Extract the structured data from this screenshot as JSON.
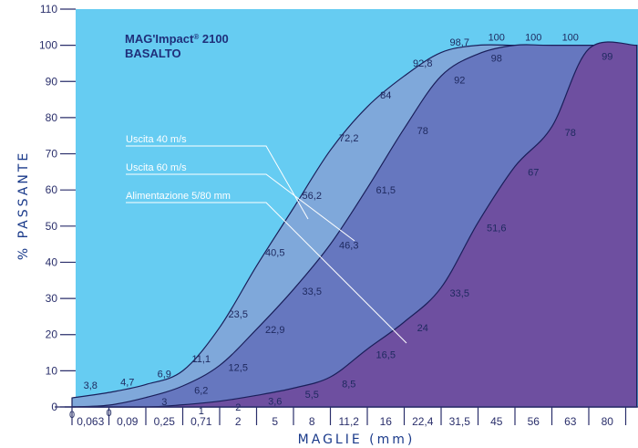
{
  "chart_data": {
    "type": "area",
    "title": "MAG'Impact",
    "title_sup": "®",
    "title_model": "2100",
    "subtitle": "BASALTO",
    "xlabel": "MAGLIE (mm)",
    "ylabel": "% PASSANTE",
    "ylim": [
      0,
      110
    ],
    "y_ticks": [
      0,
      10,
      20,
      30,
      40,
      50,
      60,
      70,
      80,
      90,
      100,
      110
    ],
    "x_categories": [
      "0,063",
      "0,09",
      "0,25",
      "0,71",
      "2",
      "5",
      "8",
      "11,2",
      "16",
      "22,4",
      "31,5",
      "45",
      "56",
      "63",
      "80"
    ],
    "series": [
      {
        "name": "Uscita 40 m/s",
        "color": "#7fa8da",
        "labels": [
          {
            "x": 0.5,
            "y": 3.8,
            "text": "3,8"
          },
          {
            "x": 1.5,
            "y": 4.7,
            "text": "4,7"
          },
          {
            "x": 2.5,
            "y": 6.9,
            "text": "6,9"
          },
          {
            "x": 3.5,
            "y": 11.1,
            "text": "11,1"
          },
          {
            "x": 4.5,
            "y": 23.5,
            "text": "23,5"
          },
          {
            "x": 5.5,
            "y": 40.5,
            "text": "40,5"
          },
          {
            "x": 6.5,
            "y": 56.2,
            "text": "56,2"
          },
          {
            "x": 7.5,
            "y": 72.2,
            "text": "72,2"
          },
          {
            "x": 8.5,
            "y": 84,
            "text": "84"
          },
          {
            "x": 9.5,
            "y": 92.8,
            "text": "92,8"
          },
          {
            "x": 10.5,
            "y": 98.7,
            "text": "98,7"
          },
          {
            "x": 11.5,
            "y": 100,
            "text": "100"
          },
          {
            "x": 12.5,
            "y": 100,
            "text": "100"
          },
          {
            "x": 13.5,
            "y": 100,
            "text": "100"
          }
        ]
      },
      {
        "name": "Uscita 60 m/s",
        "color": "#6677bf",
        "labels": [
          {
            "x": 1.0,
            "y": 0,
            "text": "0"
          },
          {
            "x": 2.5,
            "y": 3,
            "text": "3"
          },
          {
            "x": 3.5,
            "y": 6.2,
            "text": "6,2"
          },
          {
            "x": 4.5,
            "y": 12.5,
            "text": "12,5"
          },
          {
            "x": 5.5,
            "y": 22.9,
            "text": "22,9"
          },
          {
            "x": 6.5,
            "y": 33.5,
            "text": "33,5"
          },
          {
            "x": 7.5,
            "y": 46.3,
            "text": "46,3"
          },
          {
            "x": 8.5,
            "y": 61.5,
            "text": "61,5"
          },
          {
            "x": 9.5,
            "y": 78,
            "text": "78"
          },
          {
            "x": 10.5,
            "y": 92,
            "text": "92"
          },
          {
            "x": 11.5,
            "y": 98,
            "text": "98"
          }
        ]
      },
      {
        "name": "Alimentazione 5/80 mm",
        "color": "#6e4fa0",
        "labels": [
          {
            "x": 0,
            "y": 0,
            "text": "0"
          },
          {
            "x": 3.5,
            "y": 1,
            "text": "1"
          },
          {
            "x": 4.5,
            "y": 2,
            "text": "2"
          },
          {
            "x": 5.5,
            "y": 3.6,
            "text": "3,6"
          },
          {
            "x": 6.5,
            "y": 5.5,
            "text": "5,5"
          },
          {
            "x": 7.5,
            "y": 8.5,
            "text": "8,5"
          },
          {
            "x": 8.5,
            "y": 16.5,
            "text": "16,5"
          },
          {
            "x": 9.5,
            "y": 24,
            "text": "24"
          },
          {
            "x": 10.5,
            "y": 33.5,
            "text": "33,5"
          },
          {
            "x": 11.5,
            "y": 51.6,
            "text": "51,6"
          },
          {
            "x": 12.5,
            "y": 67,
            "text": "67"
          },
          {
            "x": 13.5,
            "y": 78,
            "text": "78"
          },
          {
            "x": 14.5,
            "y": 99,
            "text": "99"
          }
        ]
      }
    ],
    "background_color": "#66ccf2",
    "grid": false,
    "legend": "inline annotations, left"
  }
}
